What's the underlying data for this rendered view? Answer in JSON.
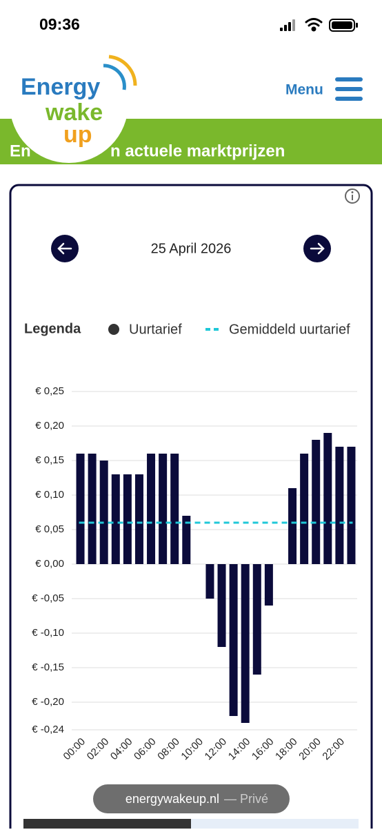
{
  "status_bar": {
    "time": "09:36"
  },
  "header": {
    "logo": {
      "line1": "Energy",
      "line2": "wake",
      "line3": "up"
    },
    "menu": "Menu"
  },
  "banner": {
    "text_start": "En",
    "text_end": "n actuele marktprijzen"
  },
  "date_nav": {
    "date": "25 April 2026"
  },
  "legend": {
    "title": "Legenda"
  },
  "chart_data": {
    "type": "bar",
    "categories": [
      "00:00",
      null,
      "02:00",
      null,
      "04:00",
      null,
      "06:00",
      null,
      "08:00",
      null,
      "10:00",
      null,
      "12:00",
      null,
      "14:00",
      null,
      "16:00",
      null,
      "18:00",
      null,
      "20:00",
      null,
      "22:00",
      null
    ],
    "series": [
      {
        "name": "Uurtarief",
        "color": "#0b0b3b",
        "values": [
          0.16,
          0.16,
          0.15,
          0.13,
          0.13,
          0.13,
          0.16,
          0.16,
          0.16,
          0.07,
          0,
          -0.05,
          -0.12,
          -0.22,
          -0.23,
          -0.16,
          -0.06,
          0,
          0.11,
          0.16,
          0.18,
          0.19,
          0.17,
          0.17
        ]
      }
    ],
    "average": {
      "name": "Gemiddeld uurtarief",
      "value": 0.06,
      "color": "#1fc8d8"
    },
    "legend_marker_color": "#333333",
    "ylim": [
      -0.24,
      0.25
    ],
    "yticks": [
      {
        "value": 0.25,
        "label": "€ 0,25"
      },
      {
        "value": 0.2,
        "label": "€ 0,20"
      },
      {
        "value": 0.15,
        "label": "€ 0,15"
      },
      {
        "value": 0.1,
        "label": "€ 0,10"
      },
      {
        "value": 0.05,
        "label": "€ 0,05"
      },
      {
        "value": 0,
        "label": "€ 0,00"
      },
      {
        "value": -0.05,
        "label": "€ -0,05"
      },
      {
        "value": -0.1,
        "label": "€ -0,10"
      },
      {
        "value": -0.15,
        "label": "€ -0,15"
      },
      {
        "value": -0.2,
        "label": "€ -0,20"
      },
      {
        "value": -0.24,
        "label": "€ -0,24"
      }
    ],
    "grid": true
  },
  "browser": {
    "url": "energywakeup.nl",
    "mode": "— Privé"
  }
}
